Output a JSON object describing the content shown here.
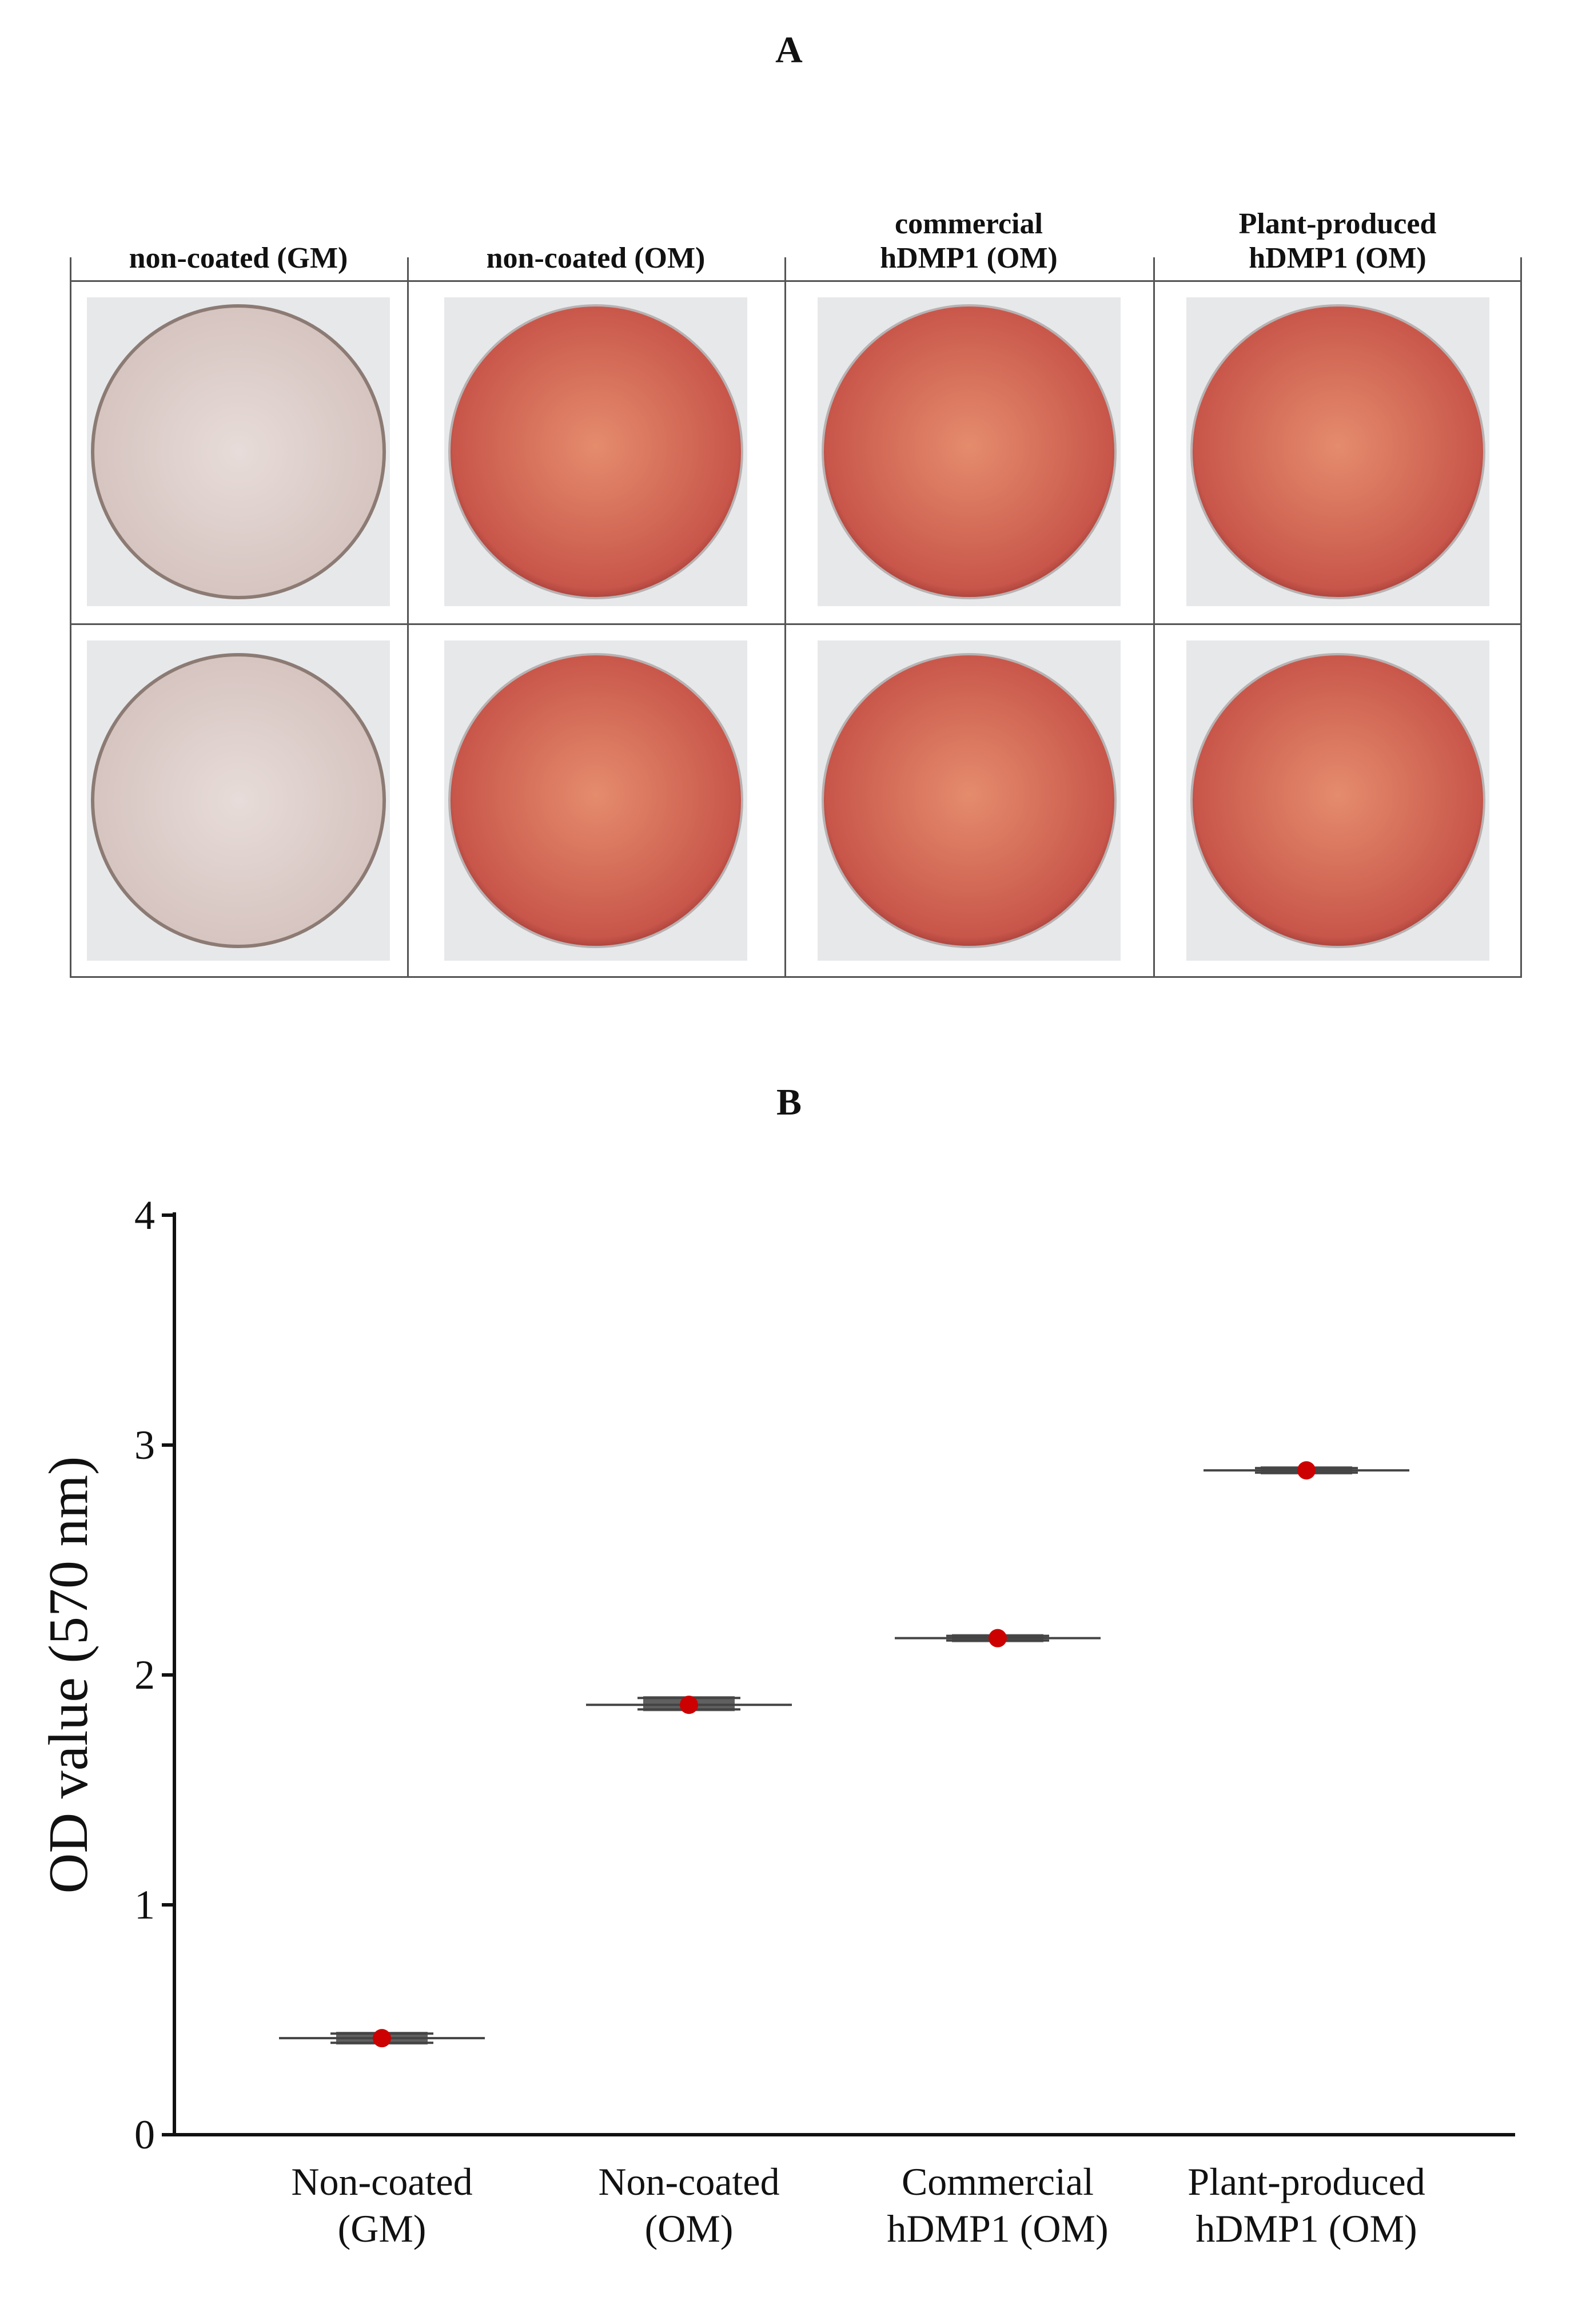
{
  "panel_a": {
    "label": "A",
    "columns": [
      {
        "label": "non-coated (GM)",
        "stain": "light"
      },
      {
        "label": "non-coated (OM)",
        "stain": "red"
      },
      {
        "label": "commercial\nhDMP1 (OM)",
        "stain": "red"
      },
      {
        "label": "Plant-produced\nhDMP1 (OM)",
        "stain": "red"
      }
    ],
    "rows": 2,
    "colors": {
      "light_center": "#e7dcd9",
      "light_mid": "#d6c4c0",
      "light_rim": "#8f7d76",
      "red_center": "#e58c6d",
      "red_mid": "#c8564a",
      "red_rim": "#8e2f30",
      "photo_bg": "#e7e8ea"
    }
  },
  "panel_b": {
    "label": "B"
  },
  "chart_data": {
    "type": "scatter",
    "title": "",
    "xlabel": "",
    "ylabel": "OD value (570 nm)",
    "ylim": [
      0,
      4
    ],
    "yticks": [
      0,
      1,
      2,
      3,
      4
    ],
    "categories": [
      "Non-coated\n(GM)",
      "Non-coated\n(OM)",
      "Commercial\nhDMP1 (OM)",
      "Plant-produced\nhDMP1 (OM)"
    ],
    "series": [
      {
        "values": [
          0.42,
          1.87,
          2.16,
          2.89
        ],
        "error_low": [
          0.4,
          1.85,
          2.15,
          2.88
        ],
        "error_high": [
          0.44,
          1.9,
          2.17,
          2.9
        ]
      }
    ],
    "marker_color": "#cc0000",
    "line_color": "#444444"
  }
}
